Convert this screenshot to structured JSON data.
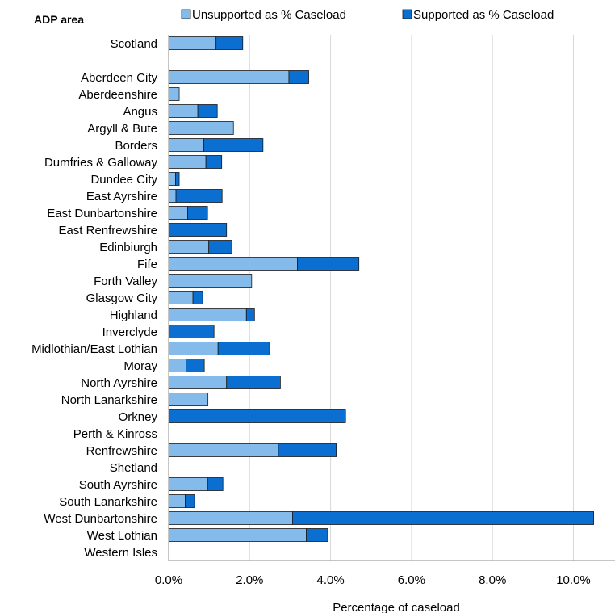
{
  "chart_data": {
    "type": "bar",
    "orientation": "horizontal",
    "stacked": true,
    "ylabel": "ADP area",
    "xlabel": "Percentage of caseload",
    "xlim": [
      0,
      11
    ],
    "xticks": [
      "0.0%",
      "2.0%",
      "4.0%",
      "6.0%",
      "8.0%",
      "10.0%"
    ],
    "xtick_values": [
      0,
      2,
      4,
      6,
      8,
      10
    ],
    "grid": "vertical",
    "legend_position": "top",
    "categories": [
      "Scotland",
      "",
      "Aberdeen City",
      "Aberdeenshire",
      "Angus",
      "Argyll & Bute",
      "Borders",
      "Dumfries & Galloway",
      "Dundee City",
      "East Ayrshire",
      "East Dunbartonshire",
      "East Renfrewshire",
      "Edinbiurgh",
      "Fife",
      "Forth Valley",
      "Glasgow City",
      "Highland",
      "Inverclyde",
      "Midlothian/East Lothian",
      "Moray",
      "North Ayrshire",
      "North Lanarkshire",
      "Orkney",
      "Perth & Kinross",
      "Renfrewshire",
      "Shetland",
      "South Ayrshire",
      "South Lanarkshire",
      "West Dunbartonshire",
      "West Lothian",
      "Western Isles"
    ],
    "series": [
      {
        "name": "Unsupported as % Caseload",
        "color": "#85bbea",
        "values": [
          1.17,
          null,
          2.97,
          0.26,
          0.72,
          1.6,
          0.87,
          0.92,
          0.17,
          0.18,
          0.47,
          0,
          0.99,
          3.18,
          2.05,
          0.6,
          1.92,
          0,
          1.22,
          0.43,
          1.43,
          0.97,
          0,
          0,
          2.71,
          0,
          0.96,
          0.41,
          3.06,
          3.4,
          0
        ]
      },
      {
        "name": "Supported as % Caseload",
        "color": "#0a6fd0",
        "values": [
          0.66,
          null,
          0.49,
          0,
          0.48,
          0,
          1.46,
          0.39,
          0.09,
          1.14,
          0.49,
          1.43,
          0.57,
          1.52,
          0,
          0.24,
          0.2,
          1.12,
          1.26,
          0.45,
          1.33,
          0,
          4.37,
          0,
          1.43,
          0,
          0.38,
          0.23,
          7.44,
          0.53,
          0
        ]
      }
    ]
  }
}
